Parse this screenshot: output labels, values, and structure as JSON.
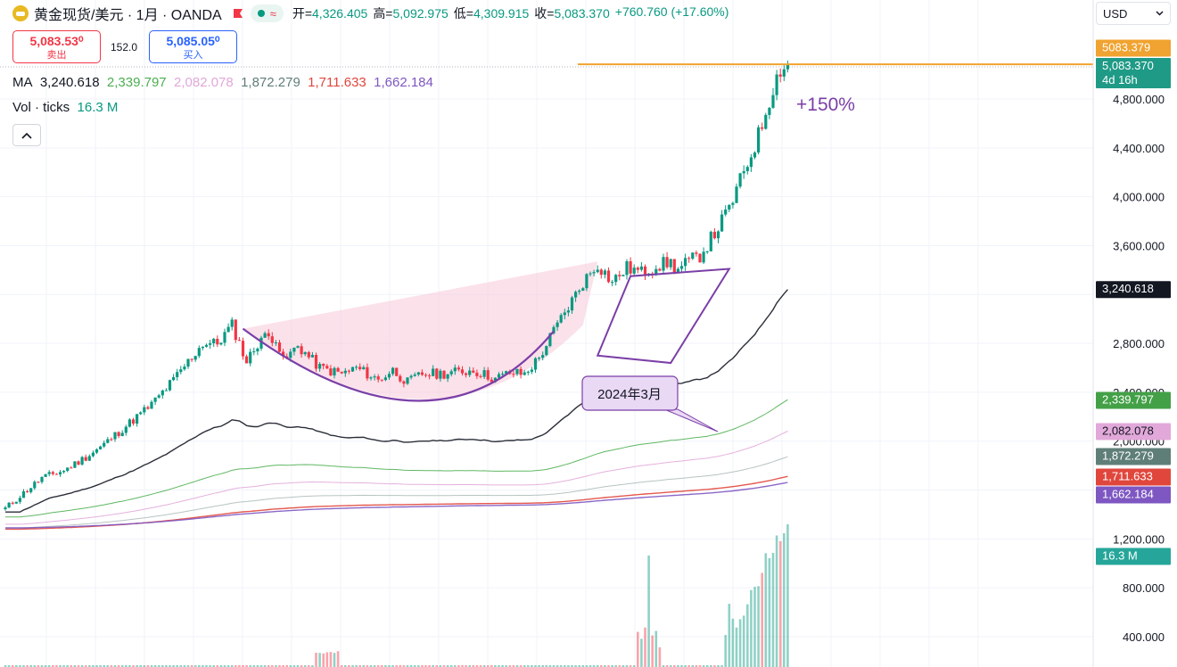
{
  "header": {
    "symbol": "黄金现货/美元 · 1月 · OANDA",
    "open_label": "开=",
    "open": "4,326.405",
    "high_label": "高=",
    "high": "5,092.975",
    "low_label": "低=",
    "low": "4,309.915",
    "close_label": "收=",
    "close": "5,083.370",
    "change": "+760.760 (+17.60%)"
  },
  "trade": {
    "sell_price": "5,083.53⁰",
    "sell_label": "卖出",
    "spread": "152.0",
    "buy_price": "5,085.05⁰",
    "buy_label": "买入"
  },
  "ma_legend": {
    "label": "MA",
    "values": [
      "3,240.618",
      "2,339.797",
      "2,082.078",
      "1,872.279",
      "1,711.633",
      "1,662.184"
    ]
  },
  "vol_legend": {
    "label": "Vol · ticks",
    "value": "16.3 M"
  },
  "currency": {
    "selected": "USD"
  },
  "colors": {
    "up": "#089981",
    "down": "#f23645",
    "ma": [
      "#131722",
      "#4caf50",
      "#e1a8d9",
      "#607d78",
      "#e0463c",
      "#7e57c2"
    ],
    "pattern": "#7b3fa7",
    "fill": "#f8c9d8",
    "price_line": "#f0a330",
    "grid": "#f0f3fa"
  },
  "chart_data": {
    "type": "candlestick",
    "title": "黄金现货/美元 · 1月 · OANDA",
    "ylim": [
      200,
      5300
    ],
    "y_ticks": [
      400,
      800,
      1200,
      1600,
      2000,
      2400,
      2800,
      3200,
      3600,
      4000,
      4400,
      4800
    ],
    "y_tick_labels": [
      "400.000",
      "800.000",
      "1,200.000",
      "2,000.000",
      "2,400.000",
      "2,800.000",
      "3,600.000",
      "4,000.000",
      "4,400.000",
      "4,800.000"
    ],
    "grid": true,
    "price_anchors": [
      [
        0,
        1450
      ],
      [
        4,
        1550
      ],
      [
        10,
        1700
      ],
      [
        16,
        1760
      ],
      [
        22,
        1870
      ],
      [
        26,
        1950
      ],
      [
        30,
        2050
      ],
      [
        34,
        2150
      ],
      [
        40,
        2300
      ],
      [
        46,
        2500
      ],
      [
        50,
        2650
      ],
      [
        54,
        2800
      ],
      [
        58,
        2800
      ],
      [
        62,
        2950
      ],
      [
        66,
        2650
      ],
      [
        70,
        2850
      ],
      [
        74,
        2850
      ],
      [
        76,
        2650
      ],
      [
        80,
        2780
      ],
      [
        86,
        2600
      ],
      [
        92,
        2550
      ],
      [
        96,
        2600
      ],
      [
        102,
        2500
      ],
      [
        106,
        2580
      ],
      [
        110,
        2480
      ],
      [
        114,
        2550
      ],
      [
        118,
        2550
      ],
      [
        122,
        2560
      ],
      [
        128,
        2580
      ],
      [
        134,
        2510
      ],
      [
        138,
        2560
      ],
      [
        142,
        2550
      ],
      [
        146,
        2680
      ],
      [
        150,
        2900
      ],
      [
        154,
        3100
      ],
      [
        158,
        3300
      ],
      [
        162,
        3450
      ],
      [
        166,
        3300
      ],
      [
        170,
        3420
      ],
      [
        174,
        3380
      ],
      [
        178,
        3440
      ],
      [
        182,
        3460
      ],
      [
        184,
        3400
      ],
      [
        186,
        3450
      ],
      [
        190,
        3520
      ],
      [
        194,
        3700
      ],
      [
        198,
        3900
      ],
      [
        202,
        4200
      ],
      [
        206,
        4500
      ],
      [
        210,
        4900
      ],
      [
        212,
        5050
      ],
      [
        214,
        5083
      ]
    ],
    "ma_series": [
      {
        "name": "3,240.618",
        "last": 3240.618
      },
      {
        "name": "2,339.797",
        "last": 2339.797
      },
      {
        "name": "2,082.078",
        "last": 2082.078
      },
      {
        "name": "1,872.279",
        "last": 1872.279
      },
      {
        "name": "1,711.633",
        "last": 1711.633
      },
      {
        "name": "1,662.184",
        "last": 1662.184
      }
    ],
    "last_price": 5083.37,
    "last_price_ask": 5083.379,
    "countdown": "4d 16h",
    "volume_last": "16.3 M",
    "annotations": [
      {
        "type": "text",
        "text": "+150%"
      },
      {
        "type": "callout",
        "text": "2024年3月"
      },
      {
        "type": "pattern",
        "name": "cup-and-handle"
      }
    ]
  }
}
